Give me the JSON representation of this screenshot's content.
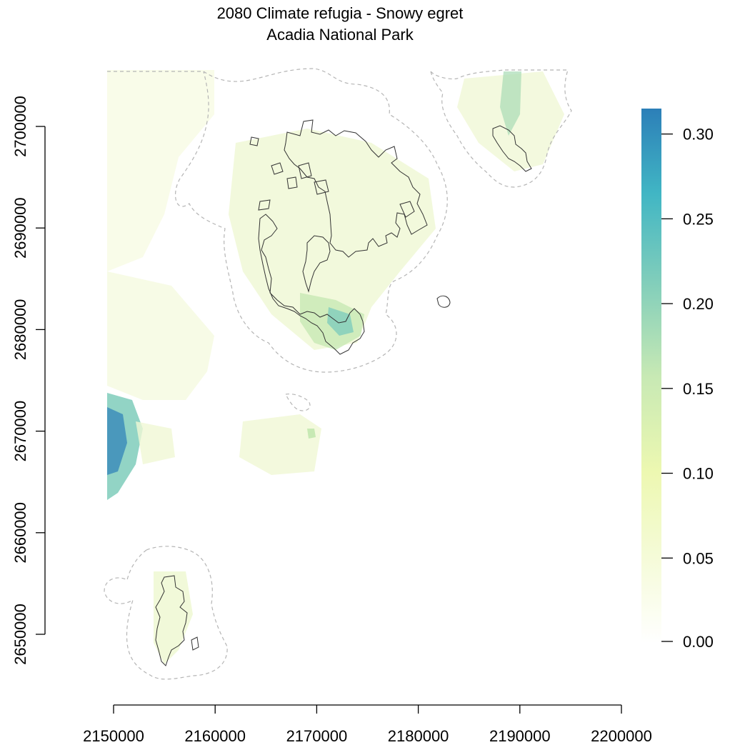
{
  "title_line1": "2080 Climate refugia - Snowy egret",
  "title_line2": "Acadia National Park",
  "map": {
    "x_range": [
      2150000,
      2200000
    ],
    "y_range": [
      2645000,
      2705000
    ],
    "x_ticks": [
      2150000,
      2160000,
      2170000,
      2180000,
      2190000,
      2200000
    ],
    "y_ticks": [
      2650000,
      2660000,
      2670000,
      2680000,
      2690000,
      2700000
    ],
    "x_tick_labels": [
      "2150000",
      "2160000",
      "2170000",
      "2180000",
      "2190000",
      "2200000"
    ],
    "y_tick_labels": [
      "2650000",
      "2660000",
      "2670000",
      "2680000",
      "2690000",
      "2700000"
    ]
  },
  "legend": {
    "range": [
      0,
      0.315
    ],
    "ticks": [
      0,
      0.05,
      0.1,
      0.15,
      0.2,
      0.25,
      0.3
    ],
    "tick_labels": [
      "0.00",
      "0.05",
      "0.10",
      "0.15",
      "0.20",
      "0.25",
      "0.30"
    ],
    "colors": [
      "#ffffff",
      "#f5fbd8",
      "#edf8b1",
      "#c7e9b4",
      "#7fcdbb",
      "#41b6c4",
      "#2c7fb8"
    ]
  },
  "colors": {
    "park_boundary": "#333333",
    "buffer_boundary": "#b5b5b5"
  }
}
